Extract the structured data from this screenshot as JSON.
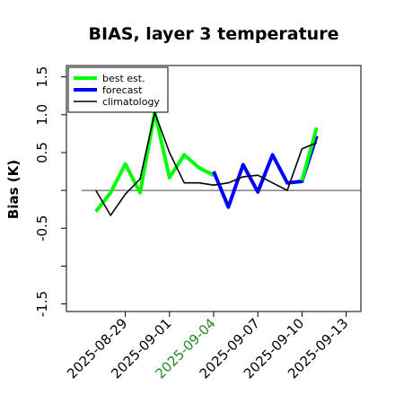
{
  "chart_data": {
    "type": "line",
    "title": "BIAS, layer 3 temperature",
    "xlabel": "",
    "ylabel": "Bias (K)",
    "x_type": "date",
    "xlim": [
      "2025-08-25",
      "2025-09-14"
    ],
    "ylim": [
      -1.6,
      1.65
    ],
    "yticks": [
      -1.5,
      -1.0,
      -0.5,
      0.0,
      0.5,
      1.0,
      1.5
    ],
    "ytick_labels": [
      "-1.5",
      "",
      "-0.5",
      "",
      "0.5",
      "1.0",
      "1.5"
    ],
    "xticks": [
      "2025-08-29",
      "2025-09-01",
      "2025-09-04",
      "2025-09-07",
      "2025-09-10",
      "2025-09-13"
    ],
    "xtick_labels": [
      "2025-08-29",
      "2025-09-01",
      "2025-09-04",
      "2025-09-07",
      "2025-09-10",
      "2025-09-13"
    ],
    "xtick_colors": [
      "#000000",
      "#000000",
      "#228B22",
      "#000000",
      "#000000",
      "#000000"
    ],
    "zero_line": true,
    "grid": false,
    "legend": {
      "position": "top-left"
    },
    "series": [
      {
        "name": "best est.",
        "color": "#00ff00",
        "style": "solid",
        "width": "thick",
        "x": [
          "2025-08-27",
          "2025-08-28",
          "2025-08-29",
          "2025-08-30",
          "2025-08-31",
          "2025-09-01",
          "2025-09-02",
          "2025-09-03",
          "2025-09-04"
        ],
        "y": [
          -0.28,
          -0.03,
          0.35,
          -0.03,
          1.03,
          0.17,
          0.47,
          0.3,
          0.2
        ]
      },
      {
        "name": "forecast",
        "color": "#0000ff",
        "style": "solid",
        "width": "thick",
        "x": [
          "2025-09-04",
          "2025-09-05",
          "2025-09-06",
          "2025-09-07",
          "2025-09-08",
          "2025-09-09",
          "2025-09-10",
          "2025-09-11"
        ],
        "y": [
          0.25,
          -0.22,
          0.34,
          -0.02,
          0.47,
          0.1,
          0.12,
          0.72
        ]
      },
      {
        "name": "best est.",
        "color": "#00ff00",
        "style": "solid",
        "width": "thick",
        "x": [
          "2025-09-10",
          "2025-09-11"
        ],
        "y": [
          0.13,
          0.83
        ]
      },
      {
        "name": "climatology",
        "color": "#000000",
        "style": "solid",
        "width": "thin",
        "x": [
          "2025-08-27",
          "2025-08-28",
          "2025-08-29",
          "2025-08-30",
          "2025-08-31",
          "2025-09-01",
          "2025-09-02",
          "2025-09-03",
          "2025-09-04",
          "2025-09-05",
          "2025-09-06",
          "2025-09-07",
          "2025-09-08",
          "2025-09-09",
          "2025-09-10",
          "2025-09-11"
        ],
        "y": [
          0.0,
          -0.33,
          -0.05,
          0.15,
          1.03,
          0.5,
          0.1,
          0.1,
          0.07,
          0.1,
          0.18,
          0.2,
          0.1,
          0.0,
          0.55,
          0.63
        ]
      }
    ],
    "legend_entries": [
      {
        "label": "best est.",
        "color": "#00ff00",
        "width": "thick"
      },
      {
        "label": "forecast",
        "color": "#0000ff",
        "width": "thick"
      },
      {
        "label": "climatology",
        "color": "#000000",
        "width": "thin"
      }
    ]
  }
}
